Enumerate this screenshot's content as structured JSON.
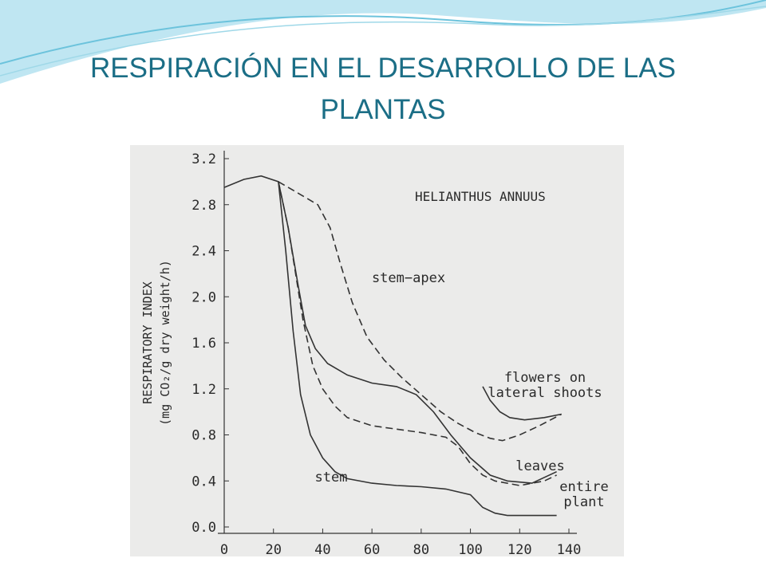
{
  "chart_data": {
    "type": "line",
    "title": "RESPIRACIÓN EN EL DESARROLLO DE LAS PLANTAS",
    "annotation": "HELIANTHUS ANNUUS",
    "y_label": [
      "RESPIRATORY INDEX",
      "(mg CO₂/g dry weight/h)"
    ],
    "xlim": [
      0,
      140
    ],
    "xticks": [
      0,
      20,
      40,
      60,
      80,
      100,
      120,
      140
    ],
    "ylim": [
      0,
      3.2
    ],
    "yticks": [
      {
        "value": 0,
        "label": "0.0"
      },
      0.4,
      0.8,
      1.2,
      1.6,
      {
        "value": 2,
        "label": "2.0"
      },
      2.4,
      2.8,
      3.2
    ],
    "series": [
      {
        "name": "stem",
        "color": "#333333",
        "style": "solid",
        "x": [
          0,
          8,
          15,
          22,
          25,
          28,
          31,
          35,
          40,
          45,
          50,
          60,
          70,
          80,
          90,
          100,
          105,
          110,
          115,
          125,
          135
        ],
        "values": [
          2.95,
          3.02,
          3.05,
          3.0,
          2.4,
          1.7,
          1.15,
          0.8,
          0.6,
          0.48,
          0.42,
          0.38,
          0.36,
          0.35,
          0.33,
          0.28,
          0.17,
          0.12,
          0.1,
          0.1,
          0.1
        ]
      },
      {
        "name": "entire plant",
        "color": "#333333",
        "style": "dashed",
        "x": [
          22,
          26,
          29,
          32,
          36,
          40,
          45,
          50,
          60,
          70,
          80,
          90,
          95,
          100,
          105,
          110,
          120,
          130,
          135
        ],
        "values": [
          3.0,
          2.6,
          2.2,
          1.8,
          1.4,
          1.2,
          1.05,
          0.95,
          0.88,
          0.85,
          0.82,
          0.78,
          0.7,
          0.55,
          0.45,
          0.4,
          0.36,
          0.4,
          0.45
        ]
      },
      {
        "name": "leaves",
        "color": "#333333",
        "style": "solid",
        "x": [
          22,
          26,
          30,
          33,
          37,
          42,
          50,
          60,
          70,
          78,
          85,
          92,
          100,
          108,
          115,
          125,
          135
        ],
        "values": [
          3.0,
          2.6,
          2.1,
          1.75,
          1.55,
          1.42,
          1.32,
          1.25,
          1.22,
          1.15,
          1.0,
          0.8,
          0.6,
          0.45,
          0.4,
          0.38,
          0.48
        ]
      },
      {
        "name": "stem−apex",
        "color": "#333333",
        "style": "dashed",
        "x": [
          22,
          30,
          38,
          43,
          47,
          52,
          58,
          65,
          72,
          80,
          88,
          95,
          102,
          108,
          113,
          120,
          128,
          137
        ],
        "values": [
          3.0,
          2.9,
          2.8,
          2.6,
          2.3,
          1.95,
          1.65,
          1.45,
          1.3,
          1.15,
          1.0,
          0.9,
          0.82,
          0.77,
          0.75,
          0.8,
          0.88,
          0.98
        ]
      },
      {
        "name": "flowers on lateral shoots",
        "color": "#333333",
        "style": "solid",
        "x": [
          105,
          108,
          112,
          116,
          122,
          130,
          137
        ],
        "values": [
          1.22,
          1.1,
          1.0,
          0.95,
          0.93,
          0.95,
          0.98
        ]
      }
    ]
  }
}
